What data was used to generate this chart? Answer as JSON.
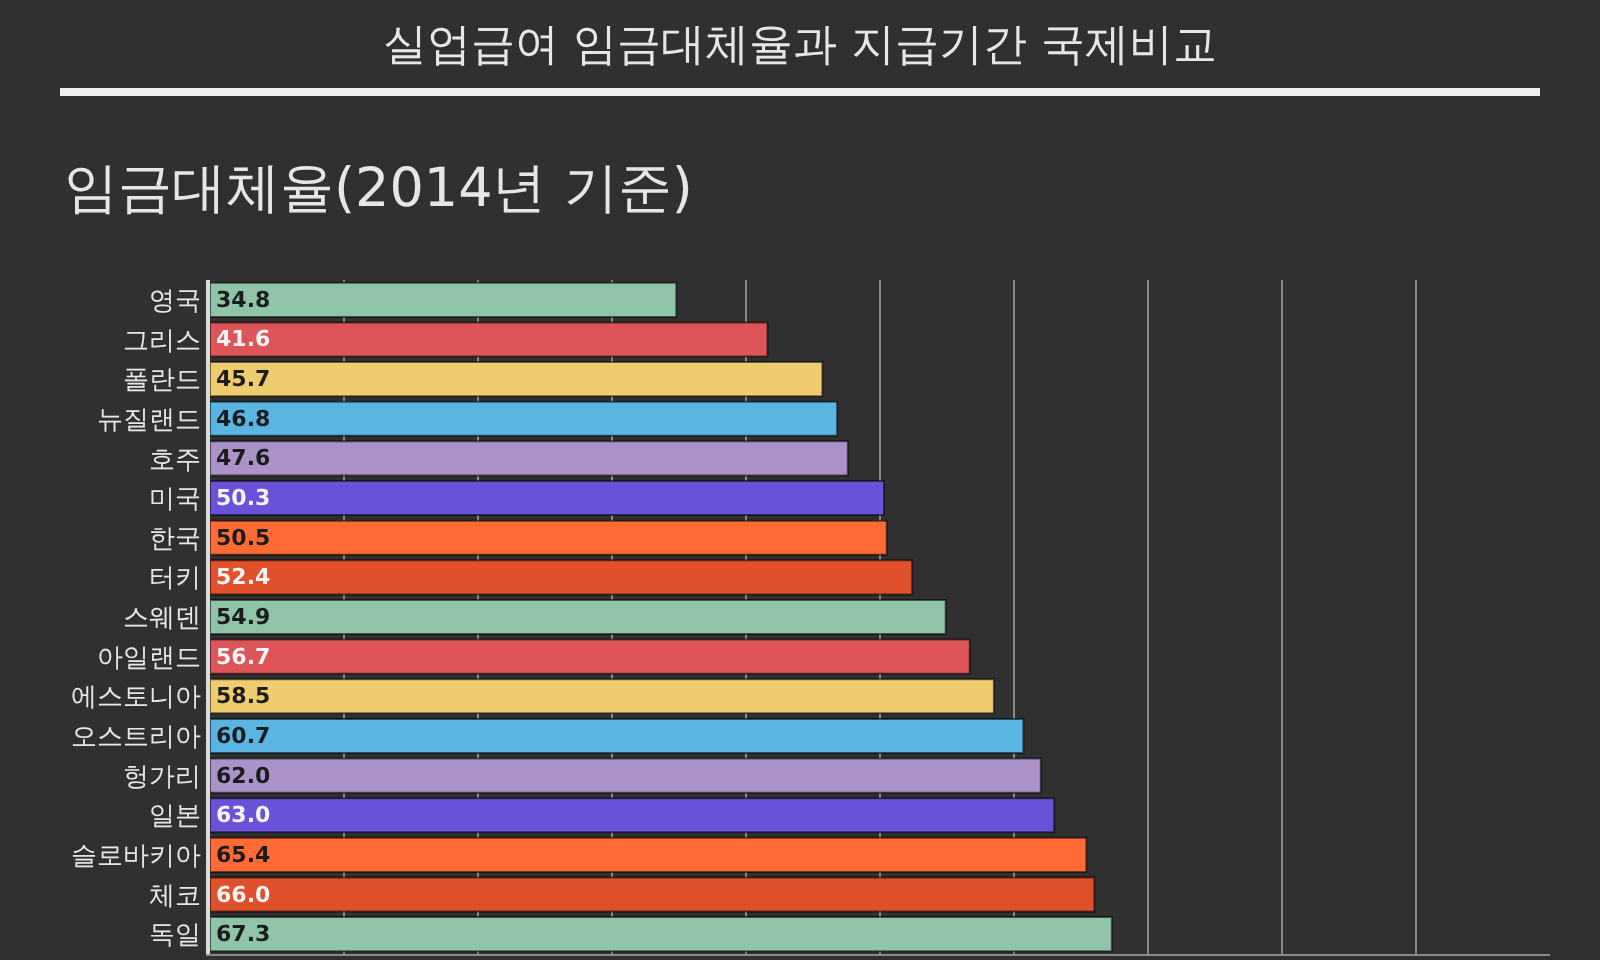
{
  "chart_data": {
    "type": "bar",
    "orientation": "horizontal",
    "title": "실업급여 임금대체율과 지급기간 국제비교",
    "subtitle": "임금대체율(2014년 기준)",
    "categories": [
      "영국",
      "그리스",
      "폴란드",
      "뉴질랜드",
      "호주",
      "미국",
      "한국",
      "터키",
      "스웨덴",
      "아일랜드",
      "에스토니아",
      "오스트리아",
      "헝가리",
      "일본",
      "슬로바키아",
      "체코",
      "독일"
    ],
    "values": [
      34.8,
      41.6,
      45.7,
      46.8,
      47.6,
      50.3,
      50.5,
      52.4,
      54.9,
      56.7,
      58.5,
      60.7,
      62.0,
      63.0,
      65.4,
      66.0,
      67.3
    ],
    "value_labels": [
      "34.8",
      "41.6",
      "45.7",
      "46.8",
      "47.6",
      "50.3",
      "50.5",
      "52.4",
      "54.9",
      "56.7",
      "58.5",
      "60.7",
      "62.0",
      "63.0",
      "65.4",
      "66.0",
      "67.3"
    ],
    "colors": [
      "#8fc4a8",
      "#dd5559",
      "#efcc6e",
      "#5ab5e3",
      "#ab92c8",
      "#6a52d8",
      "#ff6a35",
      "#e0502a",
      "#8fc4a8",
      "#dd5559",
      "#efcc6e",
      "#5ab5e3",
      "#ab92c8",
      "#6a52d8",
      "#ff6a35",
      "#e0502a",
      "#8fc4a8"
    ],
    "xlim": [
      0,
      100
    ],
    "xticks": [
      {
        "value": 10,
        "label": null
      },
      {
        "value": 20,
        "label": null
      },
      {
        "value": 30,
        "label": null
      },
      {
        "value": 40,
        "label": null
      },
      {
        "value": 50,
        "label": null
      },
      {
        "value": 60,
        "label": null
      },
      {
        "value": 70,
        "label": null
      },
      {
        "value": 80,
        "label": null
      },
      {
        "value": 90,
        "label": null
      }
    ],
    "grid": "x",
    "tick_labels": "y"
  }
}
